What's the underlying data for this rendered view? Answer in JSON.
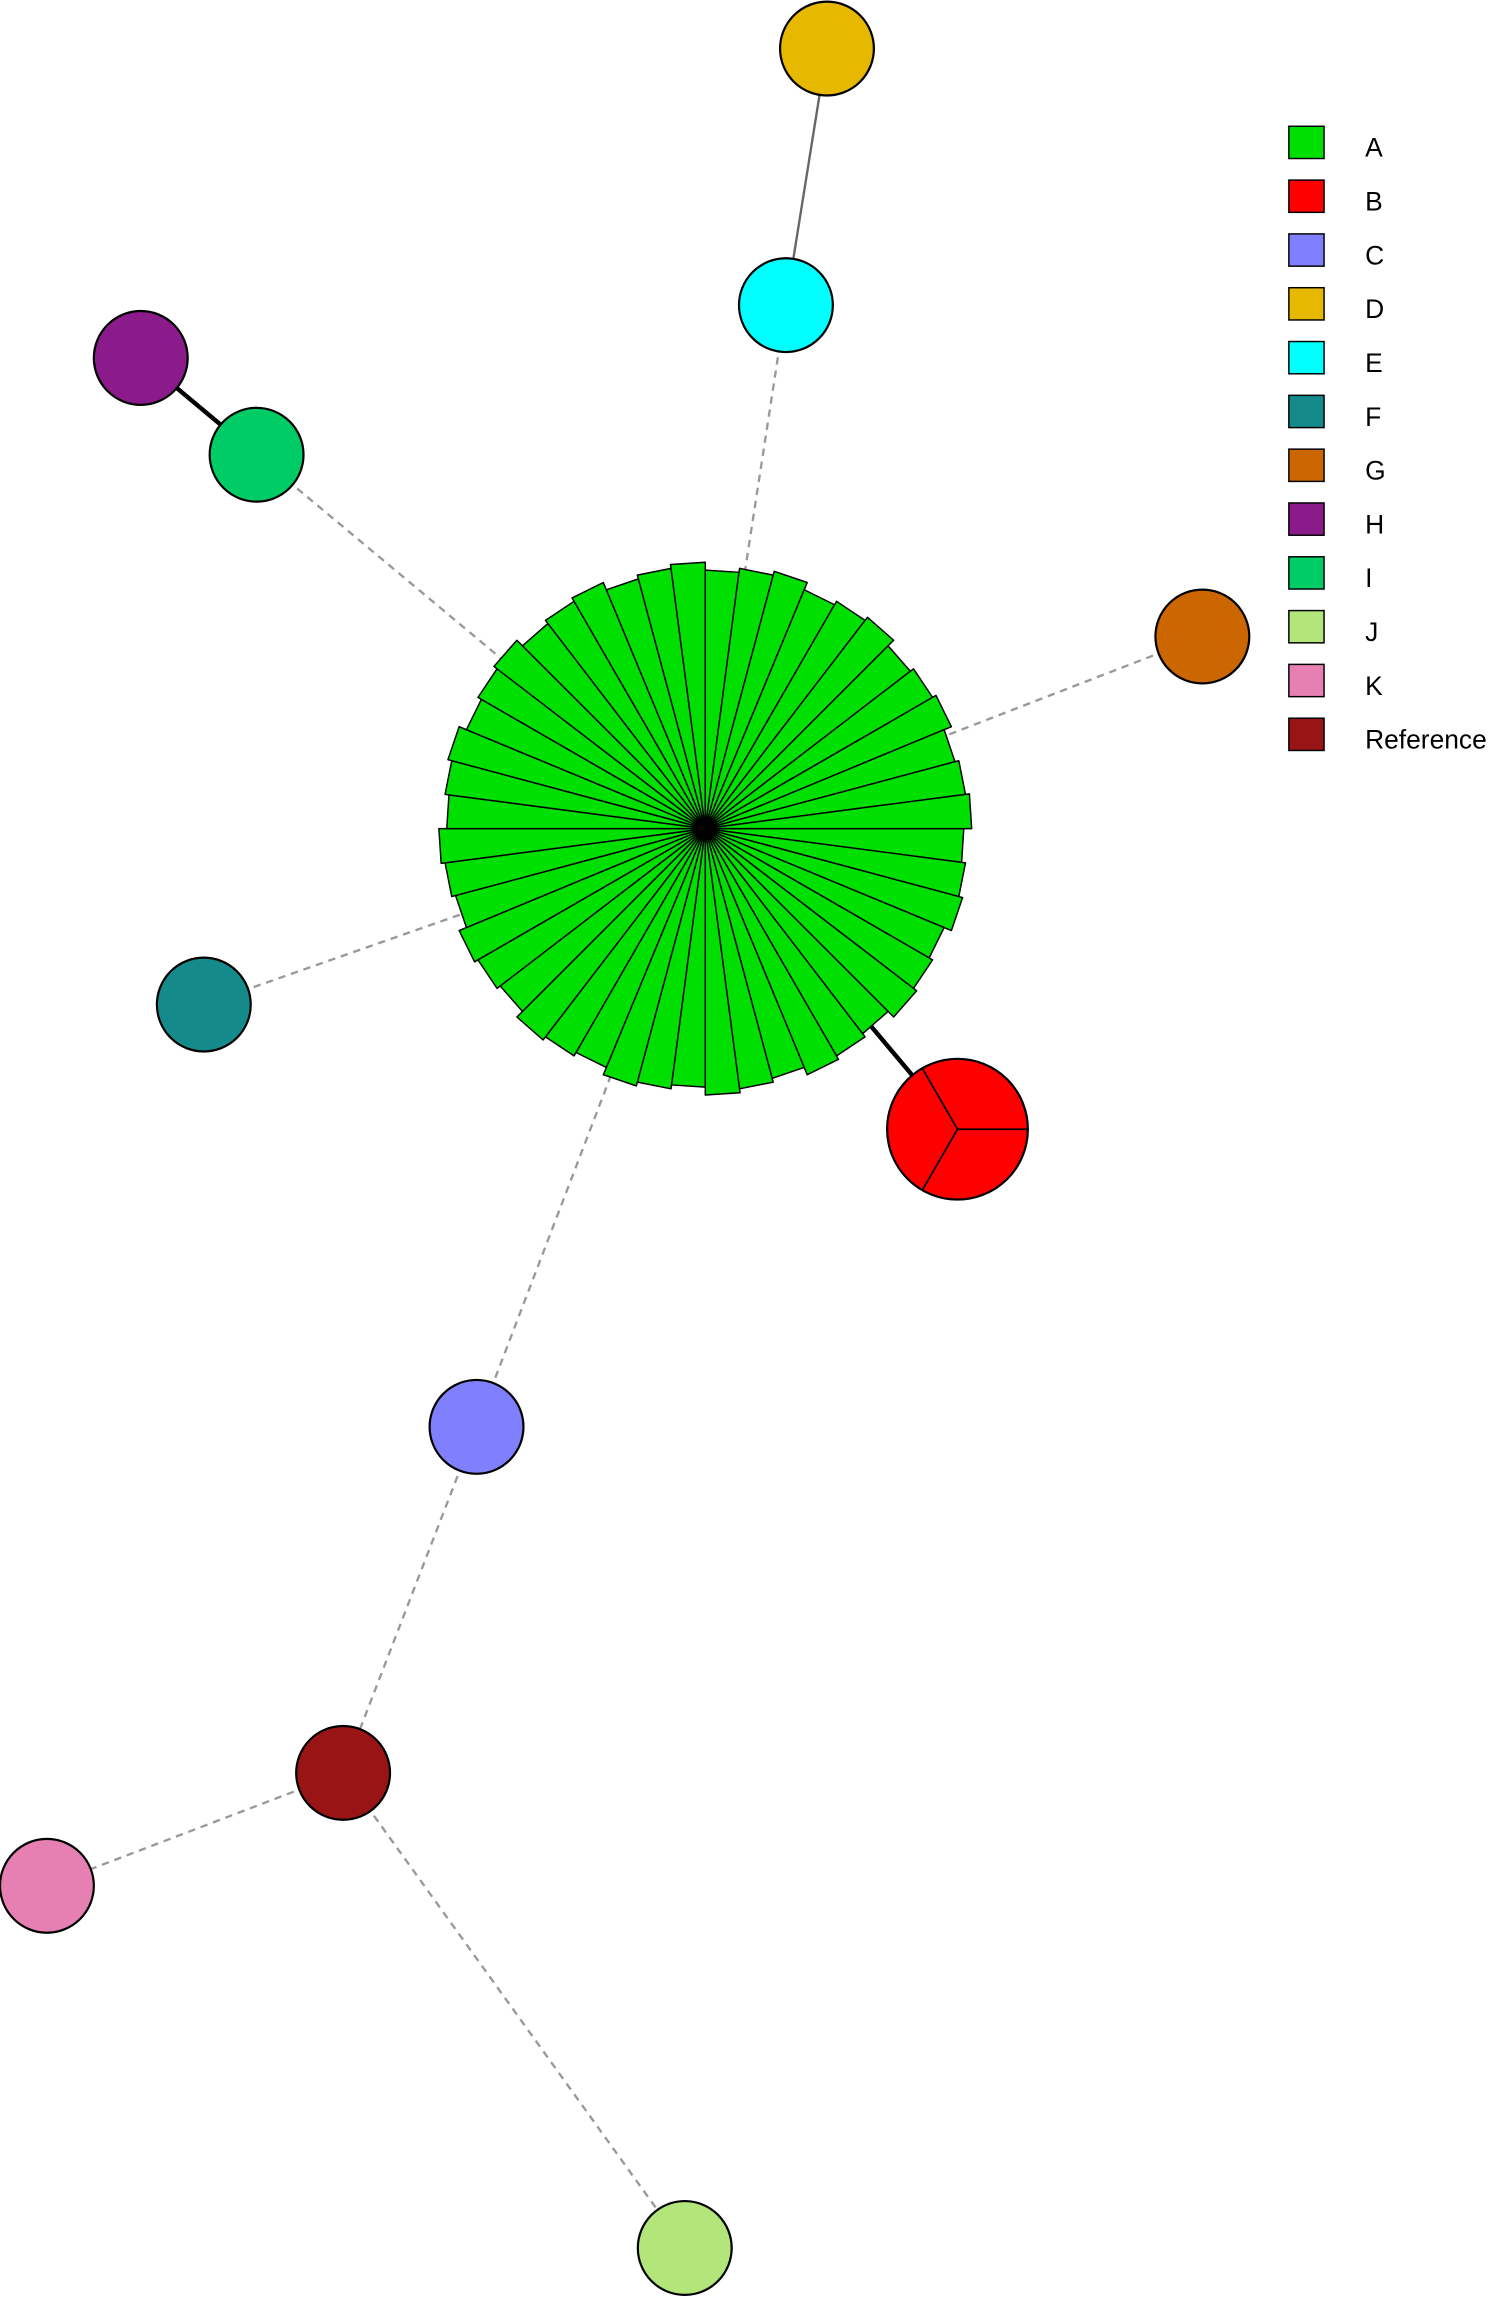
{
  "legend": {
    "items": [
      {
        "label": "A",
        "color": "#00e000"
      },
      {
        "label": "B",
        "color": "#ff0000"
      },
      {
        "label": "C",
        "color": "#8080ff"
      },
      {
        "label": "D",
        "color": "#e6b800"
      },
      {
        "label": "E",
        "color": "#00ffff"
      },
      {
        "label": "F",
        "color": "#158a8a"
      },
      {
        "label": "G",
        "color": "#cc6600"
      },
      {
        "label": "H",
        "color": "#8b1a8b"
      },
      {
        "label": "I",
        "color": "#00cc66"
      },
      {
        "label": "J",
        "color": "#b3e67a"
      },
      {
        "label": "K",
        "color": "#e680b3"
      },
      {
        "label": "Reference",
        "color": "#991515"
      }
    ]
  }
}
